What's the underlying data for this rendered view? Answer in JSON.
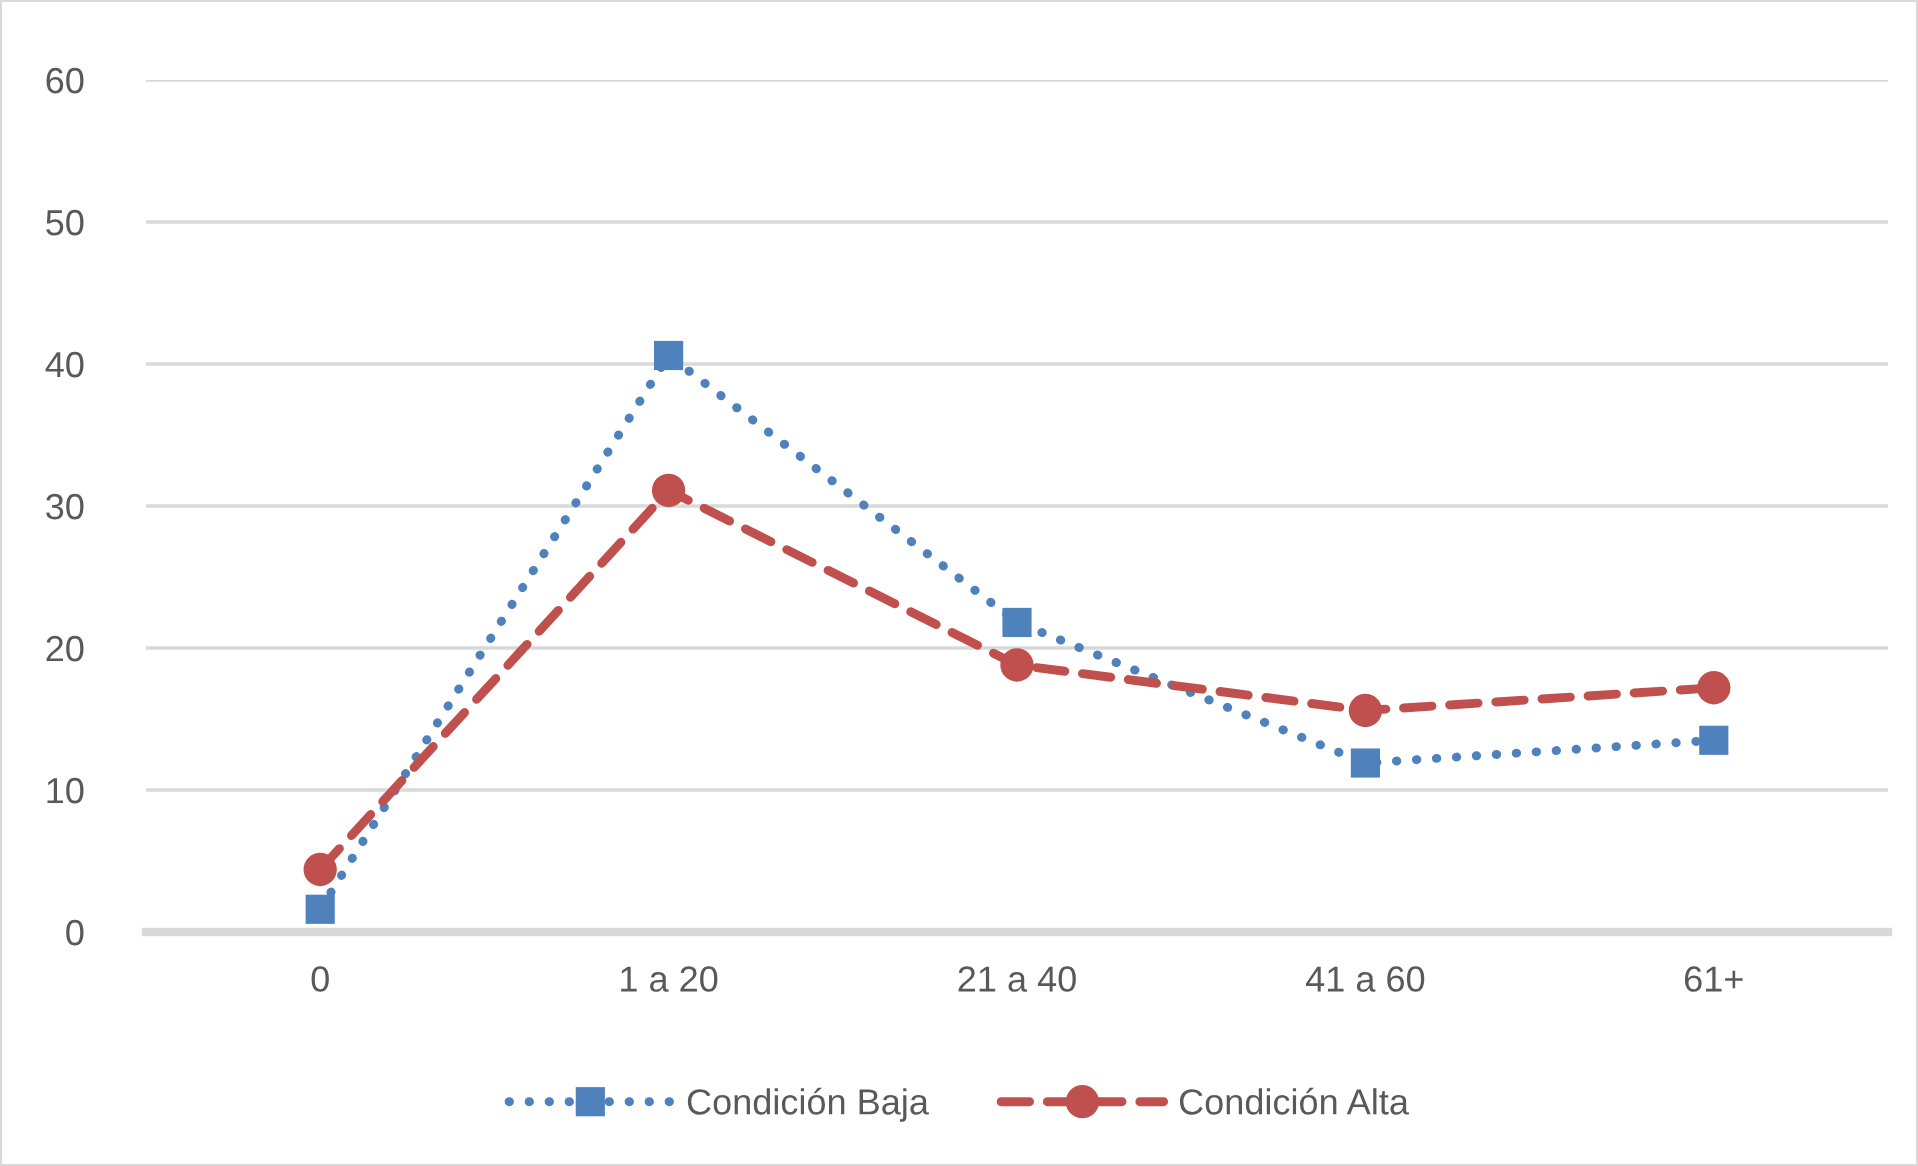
{
  "chart_data": {
    "type": "line",
    "categories": [
      "0",
      "1 a 20",
      "21 a 40",
      "41 a 60",
      "61+"
    ],
    "series": [
      {
        "name": "Condición Baja",
        "color": "#4f81bd",
        "marker": "square",
        "line_style": "dotted",
        "values": [
          1.6,
          40.6,
          21.8,
          11.9,
          13.5
        ]
      },
      {
        "name": "Condición Alta",
        "color": "#c0504d",
        "marker": "circle",
        "line_style": "dashed",
        "values": [
          4.4,
          31.1,
          18.8,
          15.6,
          17.2
        ]
      }
    ],
    "ylim": [
      0,
      60
    ],
    "yticks": [
      0,
      10,
      20,
      30,
      40,
      50,
      60
    ],
    "grid": "y",
    "legend": "bottom"
  }
}
